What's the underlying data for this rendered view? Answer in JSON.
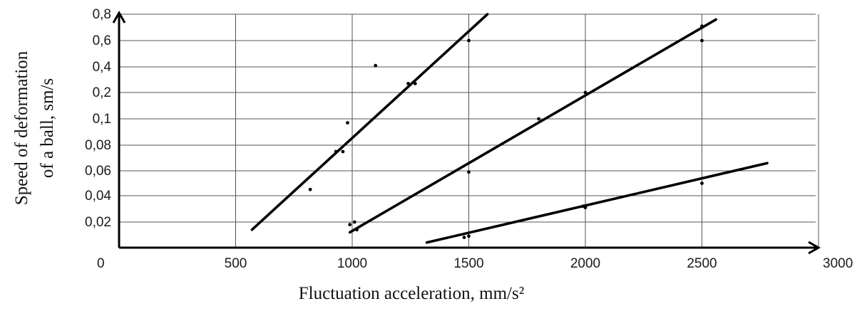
{
  "chart_data": {
    "type": "scatter",
    "title": "",
    "xlabel": "Fluctuation acceleration, mm/s²",
    "ylabel_line1": "Speed of deformation",
    "ylabel_line2": "of a ball, sm/s",
    "xlim": [
      0,
      3000
    ],
    "x_origin_label": "0",
    "x_ticks": [
      "500",
      "1000",
      "1500",
      "2000",
      "2500",
      "3000"
    ],
    "y_scale": "categorical (non-uniform)",
    "y_ticks": [
      "0,02",
      "0,04",
      "0,06",
      "0,08",
      "0,1",
      "0,2",
      "0,4",
      "0,6",
      "0,8"
    ],
    "grid": true,
    "series": [
      {
        "points": [
          [
            820,
            0.045
          ],
          [
            930,
            0.075
          ],
          [
            960,
            0.075
          ],
          [
            980,
            0.097
          ],
          [
            1100,
            0.41
          ],
          [
            1240,
            0.27
          ],
          [
            1270,
            0.27
          ],
          [
            1500,
            0.6
          ]
        ],
        "fit_line": [
          [
            570,
            0.014
          ],
          [
            1580,
            0.8
          ]
        ]
      },
      {
        "points": [
          [
            990,
            0.018
          ],
          [
            1010,
            0.02
          ],
          [
            1020,
            0.014
          ],
          [
            1500,
            0.059
          ],
          [
            1800,
            0.1
          ],
          [
            2000,
            0.2
          ],
          [
            2500,
            0.6
          ],
          [
            2500,
            0.71
          ]
        ],
        "fit_line": [
          [
            990,
            0.012
          ],
          [
            2560,
            0.76
          ]
        ]
      },
      {
        "points": [
          [
            1480,
            0.008
          ],
          [
            1500,
            0.009
          ],
          [
            1990,
            0.032
          ],
          [
            2000,
            0.031
          ],
          [
            2500,
            0.05
          ]
        ],
        "fit_line": [
          [
            1320,
            0.004
          ],
          [
            2780,
            0.066
          ]
        ]
      }
    ]
  }
}
